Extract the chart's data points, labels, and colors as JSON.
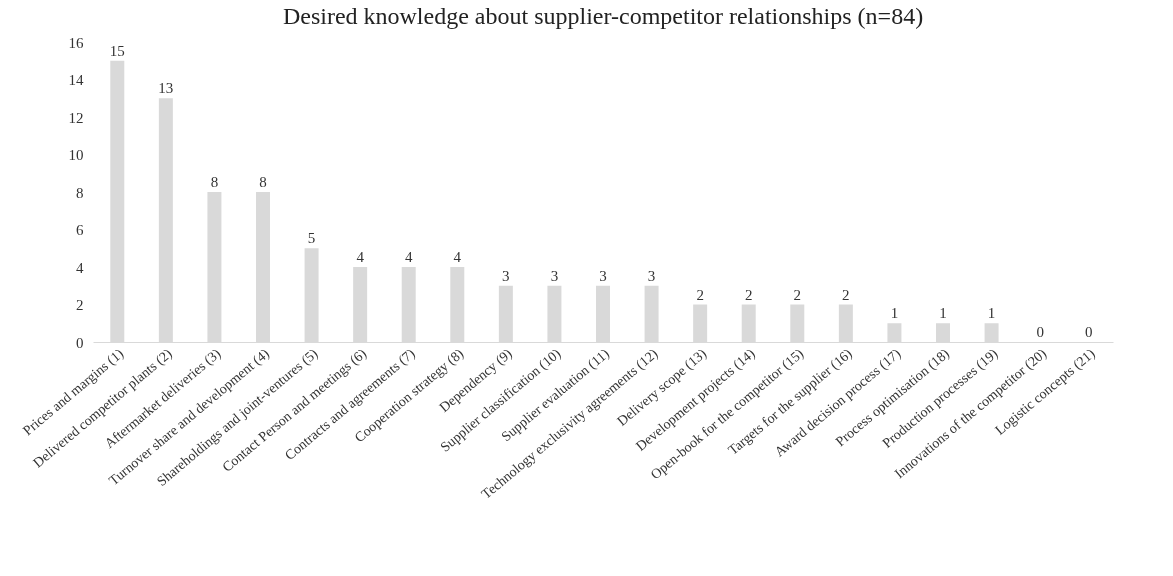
{
  "chart_data": {
    "type": "bar",
    "title": "Desired knowledge about supplier-competitor relationships (n=84)",
    "categories": [
      "Prices and margins (1)",
      "Delivered competitor plants (2)",
      "Aftermarket deliveries (3)",
      "Turnover share and development (4)",
      "Shareholdings and joint-ventures (5)",
      "Contact Person and meetings (6)",
      "Contracts and agreements (7)",
      "Cooperation strategy (8)",
      "Dependency (9)",
      "Supplier classification (10)",
      "Supplier evaluation (11)",
      "Technology exclusivity agreements (12)",
      "Delivery scope (13)",
      "Development projects (14)",
      "Open-book for the competitor (15)",
      "Targets for the supplier (16)",
      "Award decision process (17)",
      "Process optimisation (18)",
      "Production processes (19)",
      "Innovations of the competitor (20)",
      "Logistic concepts (21)"
    ],
    "values": [
      15,
      13,
      8,
      8,
      5,
      4,
      4,
      4,
      3,
      3,
      3,
      3,
      2,
      2,
      2,
      2,
      1,
      1,
      1,
      0,
      0
    ],
    "color": "#d9d9d9",
    "ylim": [
      0,
      16
    ],
    "yticks": [
      0,
      2,
      4,
      6,
      8,
      10,
      12,
      14,
      16
    ],
    "data_labels": true,
    "grid": false
  }
}
